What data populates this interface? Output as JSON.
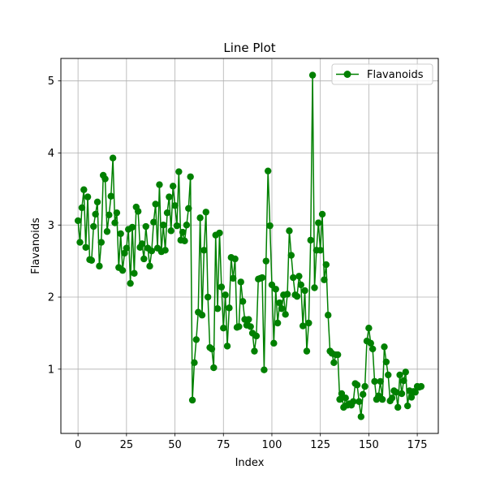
{
  "chart_data": {
    "type": "line",
    "title": "Line Plot",
    "xlabel": "Index",
    "ylabel": "Flavanoids",
    "xlim": [
      -8.85,
      185.85
    ],
    "ylim": [
      0.108,
      5.312
    ],
    "x_ticks": [
      0,
      25,
      50,
      75,
      100,
      125,
      150,
      175
    ],
    "y_ticks": [
      1,
      2,
      3,
      4,
      5
    ],
    "grid": true,
    "legend": "top-right",
    "series": [
      {
        "name": "Flavanoids",
        "color": "#008000",
        "marker": "circle",
        "x": [
          0,
          1,
          2,
          3,
          4,
          5,
          6,
          7,
          8,
          9,
          10,
          11,
          12,
          13,
          14,
          15,
          16,
          17,
          18,
          19,
          20,
          21,
          22,
          23,
          24,
          25,
          26,
          27,
          28,
          29,
          30,
          31,
          32,
          33,
          34,
          35,
          36,
          37,
          38,
          39,
          40,
          41,
          42,
          43,
          44,
          45,
          46,
          47,
          48,
          49,
          50,
          51,
          52,
          53,
          54,
          55,
          56,
          57,
          58,
          59,
          60,
          61,
          62,
          63,
          64,
          65,
          66,
          67,
          68,
          69,
          70,
          71,
          72,
          73,
          74,
          75,
          76,
          77,
          78,
          79,
          80,
          81,
          82,
          83,
          84,
          85,
          86,
          87,
          88,
          89,
          90,
          91,
          92,
          93,
          94,
          95,
          96,
          97,
          98,
          99,
          100,
          101,
          102,
          103,
          104,
          105,
          106,
          107,
          108,
          109,
          110,
          111,
          112,
          113,
          114,
          115,
          116,
          117,
          118,
          119,
          120,
          121,
          122,
          123,
          124,
          125,
          126,
          127,
          128,
          129,
          130,
          131,
          132,
          133,
          134,
          135,
          136,
          137,
          138,
          139,
          140,
          141,
          142,
          143,
          144,
          145,
          146,
          147,
          148,
          149,
          150,
          151,
          152,
          153,
          154,
          155,
          156,
          157,
          158,
          159,
          160,
          161,
          162,
          163,
          164,
          165,
          166,
          167,
          168,
          169,
          170,
          171,
          172,
          173,
          174,
          175,
          176,
          177
        ],
        "values": [
          3.06,
          2.76,
          3.24,
          3.49,
          2.69,
          3.39,
          2.52,
          2.51,
          2.98,
          3.15,
          3.32,
          2.43,
          2.76,
          3.69,
          3.64,
          2.91,
          3.14,
          3.4,
          3.93,
          3.03,
          3.17,
          2.41,
          2.88,
          2.37,
          2.61,
          2.68,
          2.94,
          2.19,
          2.97,
          2.33,
          3.25,
          3.19,
          2.69,
          2.74,
          2.53,
          2.98,
          2.68,
          2.43,
          2.64,
          3.04,
          3.29,
          2.68,
          3.56,
          2.63,
          3.0,
          2.65,
          3.17,
          3.39,
          2.92,
          3.54,
          3.27,
          2.99,
          3.74,
          2.79,
          2.9,
          2.78,
          3.0,
          3.23,
          3.67,
          0.57,
          1.09,
          1.41,
          1.79,
          3.1,
          1.75,
          2.65,
          3.18,
          2.0,
          1.3,
          1.28,
          1.02,
          2.86,
          1.84,
          2.89,
          2.14,
          1.57,
          2.03,
          1.32,
          1.85,
          2.55,
          2.26,
          2.53,
          1.58,
          1.59,
          2.21,
          1.94,
          1.69,
          1.61,
          1.69,
          1.59,
          1.5,
          1.25,
          1.46,
          2.25,
          2.26,
          2.27,
          0.99,
          2.5,
          3.75,
          2.99,
          2.17,
          1.36,
          2.11,
          1.64,
          1.92,
          1.84,
          2.03,
          1.76,
          2.04,
          2.92,
          2.58,
          2.27,
          2.03,
          2.01,
          2.29,
          2.17,
          1.6,
          2.09,
          1.25,
          1.64,
          2.79,
          5.08,
          2.13,
          2.65,
          3.03,
          2.65,
          3.15,
          2.24,
          2.45,
          1.75,
          1.25,
          1.22,
          1.09,
          1.2,
          1.2,
          0.58,
          0.66,
          0.47,
          0.6,
          0.5,
          0.52,
          0.5,
          0.55,
          0.8,
          0.78,
          0.55,
          0.34,
          0.65,
          0.76,
          1.39,
          1.57,
          1.36,
          1.28,
          0.83,
          0.58,
          0.63,
          0.83,
          0.58,
          1.31,
          1.1,
          0.92,
          0.56,
          0.6,
          0.7,
          0.68,
          0.47,
          0.92,
          0.66,
          0.84,
          0.96,
          0.49,
          0.7,
          0.61,
          0.69,
          0.68,
          0.76,
          0.75,
          0.76
        ]
      }
    ]
  }
}
